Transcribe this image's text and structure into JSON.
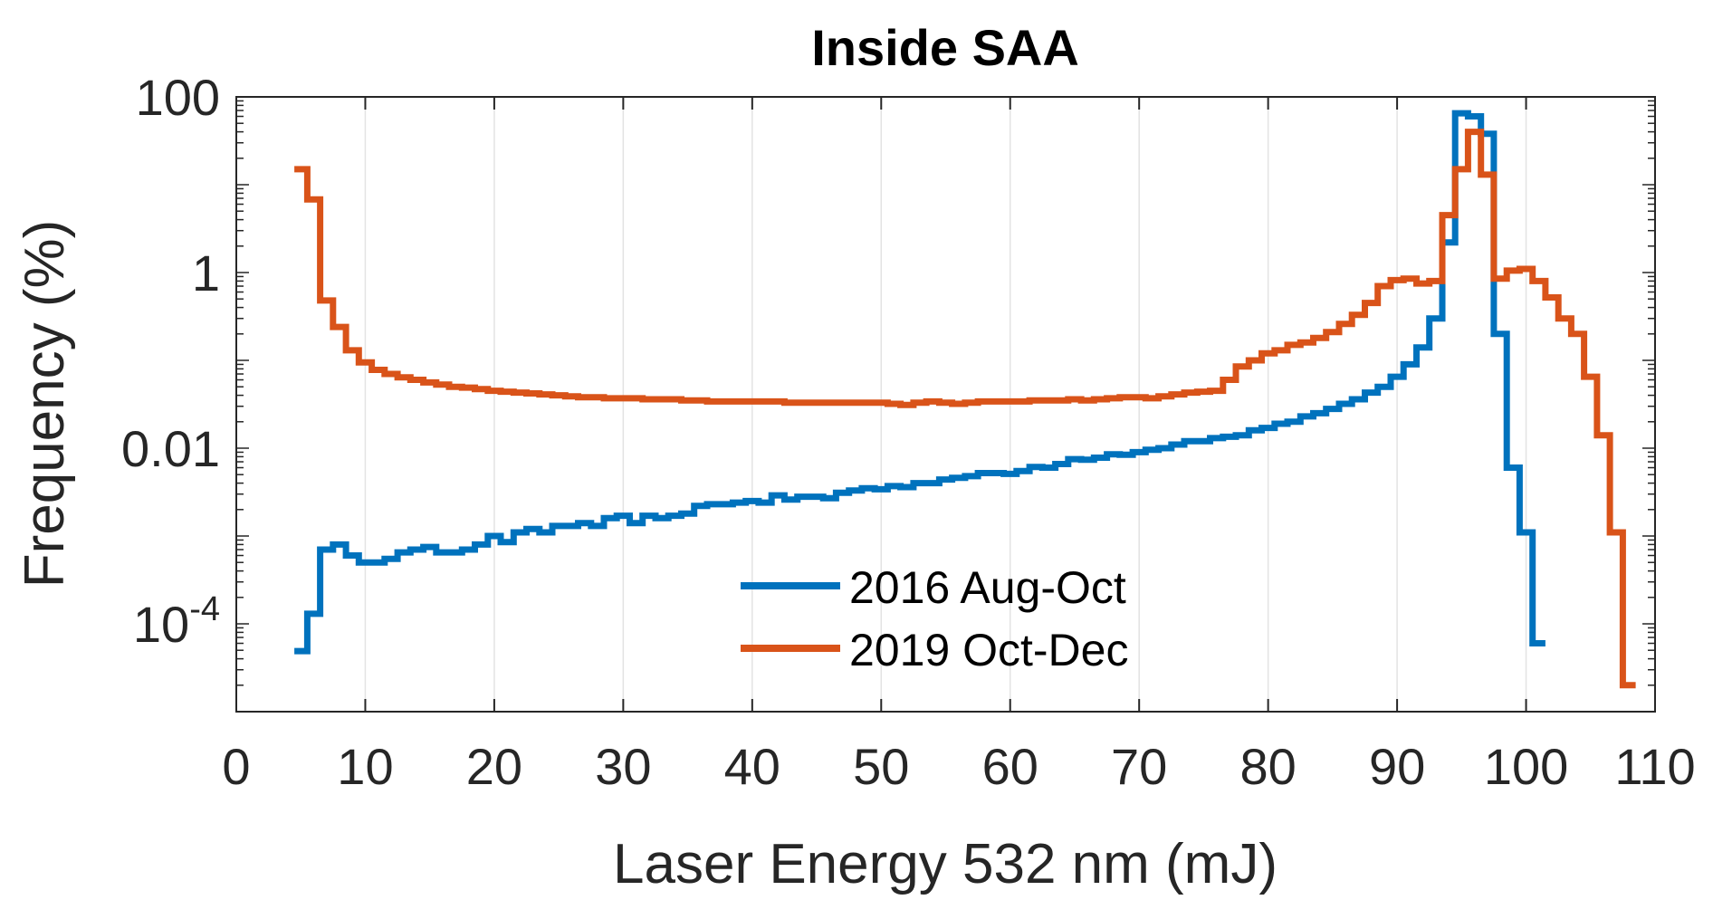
{
  "chart_data": {
    "type": "line",
    "subtype": "stairs-histogram",
    "title": "Inside SAA",
    "xlabel": "Laser Energy 532 nm (mJ)",
    "ylabel": "Frequency (%)",
    "xlim": [
      0,
      110
    ],
    "ylim": [
      1e-05,
      100
    ],
    "yscale": "log",
    "xticks": [
      0,
      10,
      20,
      30,
      40,
      50,
      60,
      70,
      80,
      90,
      100,
      110
    ],
    "xtick_labels": [
      "0",
      "10",
      "20",
      "30",
      "40",
      "50",
      "60",
      "70",
      "80",
      "90",
      "100",
      "110"
    ],
    "yticks": [
      0.0001,
      0.01,
      1,
      100
    ],
    "ytick_labels": [
      {
        "base": "10",
        "exp": "-4"
      },
      {
        "base": "0.01"
      },
      {
        "base": "1"
      },
      {
        "base": "100"
      }
    ],
    "grid": "x-major",
    "legend_position": "lower-center",
    "bin_width": 1,
    "series": [
      {
        "name": "2016 Aug-Oct",
        "color": "#0072BD",
        "bin_centers_start": 5,
        "values": [
          4.9e-05,
          0.00013,
          0.0007,
          0.0008,
          0.0006,
          0.0005,
          0.0005,
          0.00055,
          0.00065,
          0.0007,
          0.00075,
          0.00065,
          0.00065,
          0.0007,
          0.0008,
          0.001,
          0.00085,
          0.0011,
          0.0012,
          0.0011,
          0.0013,
          0.0013,
          0.0014,
          0.0013,
          0.0016,
          0.0017,
          0.0014,
          0.0017,
          0.0016,
          0.0017,
          0.0018,
          0.0022,
          0.0023,
          0.0023,
          0.0024,
          0.0025,
          0.0024,
          0.0029,
          0.0026,
          0.0028,
          0.0028,
          0.0027,
          0.0031,
          0.0033,
          0.0035,
          0.0034,
          0.0037,
          0.0036,
          0.004,
          0.004,
          0.0044,
          0.0046,
          0.0048,
          0.0052,
          0.0052,
          0.0051,
          0.0055,
          0.0061,
          0.006,
          0.0066,
          0.0075,
          0.0074,
          0.0078,
          0.0085,
          0.0084,
          0.009,
          0.0096,
          0.01,
          0.011,
          0.012,
          0.012,
          0.013,
          0.0135,
          0.014,
          0.016,
          0.017,
          0.019,
          0.02,
          0.023,
          0.025,
          0.028,
          0.032,
          0.036,
          0.043,
          0.05,
          0.065,
          0.09,
          0.14,
          0.3,
          2.2,
          65,
          60,
          38,
          0.2,
          0.006,
          0.0011,
          6e-05
        ]
      },
      {
        "name": "2019 Oct-Dec",
        "color": "#D95319",
        "bin_centers_start": 5,
        "values": [
          15,
          6.8,
          0.48,
          0.24,
          0.13,
          0.095,
          0.078,
          0.07,
          0.064,
          0.06,
          0.056,
          0.053,
          0.05,
          0.049,
          0.047,
          0.045,
          0.044,
          0.043,
          0.042,
          0.041,
          0.04,
          0.039,
          0.038,
          0.038,
          0.037,
          0.037,
          0.037,
          0.036,
          0.036,
          0.036,
          0.035,
          0.035,
          0.034,
          0.034,
          0.034,
          0.034,
          0.034,
          0.034,
          0.033,
          0.033,
          0.033,
          0.033,
          0.033,
          0.033,
          0.033,
          0.033,
          0.032,
          0.031,
          0.033,
          0.034,
          0.033,
          0.032,
          0.033,
          0.034,
          0.034,
          0.034,
          0.034,
          0.035,
          0.035,
          0.035,
          0.036,
          0.035,
          0.036,
          0.037,
          0.038,
          0.038,
          0.037,
          0.039,
          0.041,
          0.043,
          0.044,
          0.045,
          0.06,
          0.085,
          0.1,
          0.12,
          0.13,
          0.15,
          0.16,
          0.18,
          0.21,
          0.26,
          0.33,
          0.45,
          0.7,
          0.82,
          0.85,
          0.75,
          0.8,
          4.5,
          15,
          40,
          13,
          0.85,
          1.05,
          1.1,
          0.8,
          0.52,
          0.3,
          0.2,
          0.065,
          0.014,
          0.0011,
          2e-05
        ]
      }
    ]
  }
}
